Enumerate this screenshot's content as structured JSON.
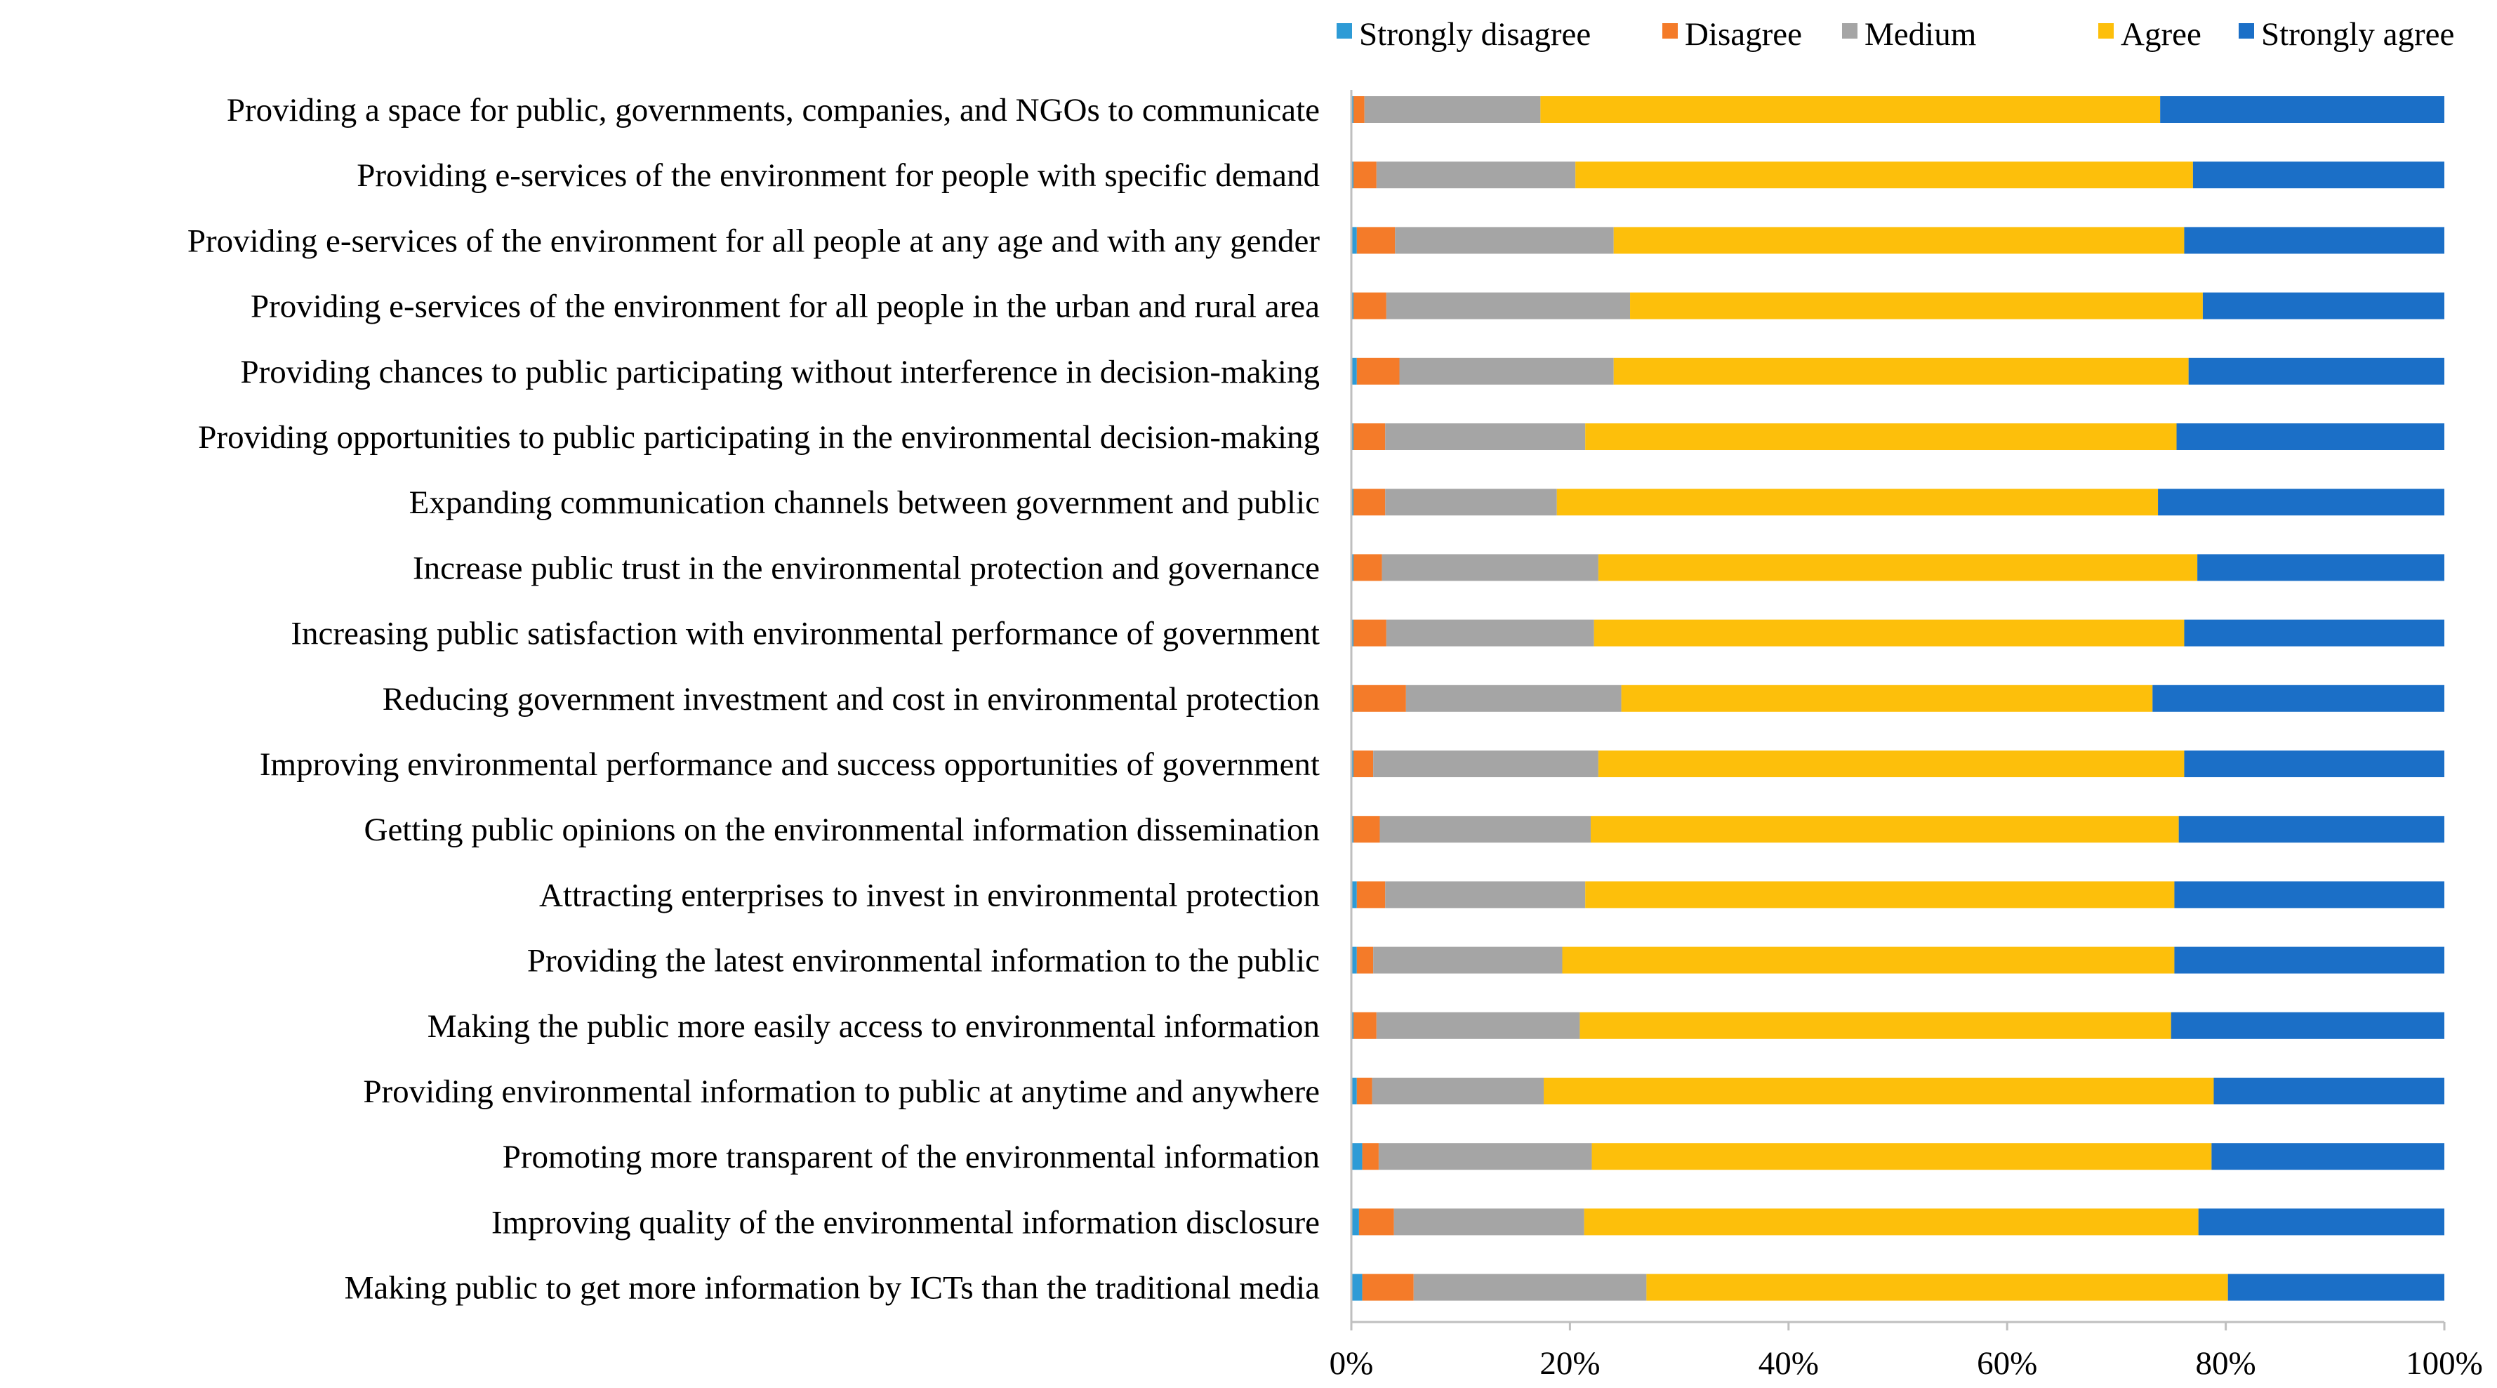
{
  "chart_data": {
    "type": "bar",
    "orientation": "horizontal",
    "stacked": "percent",
    "title": "",
    "xlabel": "",
    "ylabel": "",
    "xlim": [
      0,
      100
    ],
    "x_ticks": [
      "0%",
      "20%",
      "40%",
      "60%",
      "80%",
      "100%"
    ],
    "x_tick_values": [
      0,
      20,
      40,
      60,
      80,
      100
    ],
    "grid": false,
    "legend_position": "top",
    "categories": [
      "Providing a space for public, governments, companies, and NGOs to communicate",
      "Providing e-services of the environment for people with specific demand",
      "Providing e-services of the environment for all people at any age and with any gender",
      "Providing e-services of the environment for all people in the urban and rural area",
      "Providing chances to public participating without interference in decision-making",
      "Providing opportunities to public participating in the environmental decision-making",
      "Expanding communication channels between government and public",
      "Increase public trust in the environmental protection and governance",
      "Increasing public satisfaction with environmental performance of government",
      "Reducing government investment and cost in environmental protection",
      "Improving environmental performance and success opportunities of government",
      "Getting public opinions on the environmental information dissemination",
      "Attracting enterprises to invest in environmental protection",
      "Providing the latest environmental information to the public",
      "Making the public more easily access to environmental information",
      "Providing environmental information to public at anytime and anywhere",
      "Promoting more transparent of the environmental information",
      "Improving quality of the environmental information disclosure",
      "Making public to get more information by ICTs than the traditional media"
    ],
    "series": [
      {
        "name": "Strongly disagree",
        "color": "#2e9bd6",
        "values": [
          0.2,
          0.2,
          0.5,
          0.2,
          0.5,
          0.2,
          0.2,
          0.2,
          0.2,
          0.2,
          0.2,
          0.2,
          0.5,
          0.5,
          0.2,
          0.5,
          1.0,
          0.7,
          1.0
        ]
      },
      {
        "name": "Disagree",
        "color": "#f47b29",
        "values": [
          1.0,
          2.1,
          3.5,
          3.0,
          3.9,
          2.9,
          2.9,
          2.6,
          3.0,
          4.8,
          1.8,
          2.4,
          2.6,
          1.5,
          2.1,
          1.4,
          1.5,
          3.2,
          4.7
        ]
      },
      {
        "name": "Medium",
        "color": "#a5a5a5",
        "values": [
          16.1,
          18.2,
          20.0,
          22.3,
          19.6,
          18.3,
          15.7,
          19.8,
          19.0,
          19.7,
          20.6,
          19.3,
          18.3,
          17.3,
          18.6,
          15.7,
          19.5,
          17.4,
          21.3
        ]
      },
      {
        "name": "Agree",
        "color": "#fdbf0b",
        "values": [
          56.7,
          56.5,
          52.2,
          52.4,
          52.6,
          54.1,
          55.0,
          54.8,
          54.0,
          48.6,
          53.6,
          53.8,
          53.9,
          56.0,
          54.1,
          61.3,
          56.7,
          56.2,
          53.2
        ]
      },
      {
        "name": "Strongly agree",
        "color": "#1b6fc7",
        "values": [
          26.0,
          23.0,
          23.8,
          22.1,
          23.4,
          24.5,
          26.2,
          22.6,
          23.8,
          26.7,
          23.8,
          24.3,
          24.7,
          24.7,
          25.0,
          21.1,
          21.3,
          22.5,
          19.8
        ]
      }
    ]
  }
}
